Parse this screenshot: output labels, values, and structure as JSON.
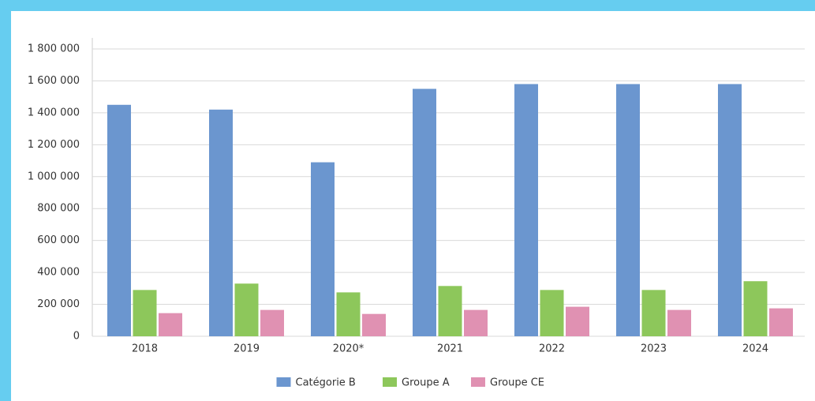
{
  "chart_data": {
    "type": "bar",
    "categories": [
      "2018",
      "2019",
      "2020*",
      "2021",
      "2022",
      "2023",
      "2024"
    ],
    "series": [
      {
        "name": "Catégorie B",
        "color": "#6b96cf",
        "values": [
          1450000,
          1420000,
          1090000,
          1550000,
          1580000,
          1580000,
          1580000
        ]
      },
      {
        "name": "Groupe A",
        "color": "#8dc75b",
        "values": [
          290000,
          330000,
          275000,
          315000,
          290000,
          290000,
          345000
        ]
      },
      {
        "name": "Groupe CE",
        "color": "#e091b2",
        "values": [
          145000,
          165000,
          140000,
          165000,
          185000,
          165000,
          175000
        ]
      }
    ],
    "ylim": [
      0,
      1800000
    ],
    "yticks": [
      0,
      {
        "value": 200000,
        "label": "200 000"
      },
      {
        "value": 400000,
        "label": "400 000"
      },
      {
        "value": 600000,
        "label": "600 000"
      },
      {
        "value": 800000,
        "label": "800 000"
      },
      {
        "value": 1000000,
        "label": "1 000 000"
      },
      {
        "value": 1200000,
        "label": "1 200 000"
      },
      {
        "value": 1400000,
        "label": "1 400 000"
      },
      {
        "value": 1600000,
        "label": "1 600 000"
      },
      {
        "value": 1800000,
        "label": "1 800 000"
      }
    ],
    "grid": true,
    "legend": "bottom"
  }
}
